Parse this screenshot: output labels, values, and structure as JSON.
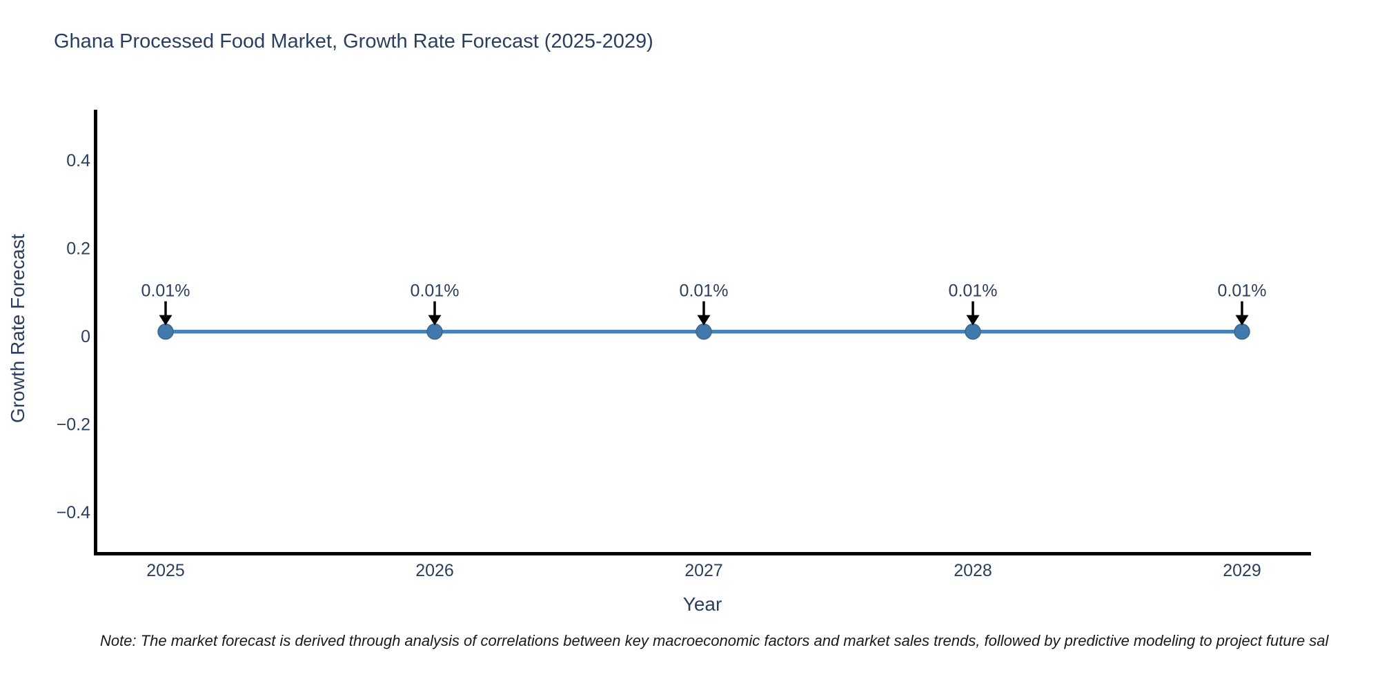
{
  "title": "Ghana Processed Food Market, Growth Rate Forecast (2025-2029)",
  "note": "Note: The market forecast is derived through analysis of correlations between key macroeconomic factors and market sales trends, followed by predictive modeling to project future sal",
  "chart_data": {
    "type": "line",
    "title": "Ghana Processed Food Market, Growth Rate Forecast (2025-2029)",
    "xlabel": "Year",
    "ylabel": "Growth Rate Forecast",
    "categories": [
      "2025",
      "2026",
      "2027",
      "2028",
      "2029"
    ],
    "series": [
      {
        "name": "Growth Rate Forecast",
        "values": [
          0.01,
          0.01,
          0.01,
          0.01,
          0.01
        ]
      }
    ],
    "point_labels": [
      "0.01%",
      "0.01%",
      "0.01%",
      "0.01%",
      "0.01%"
    ],
    "yticks": [
      0.4,
      0.2,
      0,
      -0.2,
      -0.4
    ],
    "ytick_labels": [
      "0.4",
      "0.2",
      "0",
      "−0.2",
      "−0.4"
    ],
    "ylim": [
      -0.49,
      0.51
    ],
    "grid": false,
    "legend": false,
    "annotation_arrows": "black arrows pointing down from each label to each data point",
    "colors": {
      "line": "#4682b4",
      "marker": "#4279ad",
      "marker_edge": "#38678f",
      "arrow": "#000000",
      "text": "#2a3f5f",
      "spine": "#000000",
      "note_text": "#1a1a1a",
      "background": "#ffffff"
    }
  }
}
